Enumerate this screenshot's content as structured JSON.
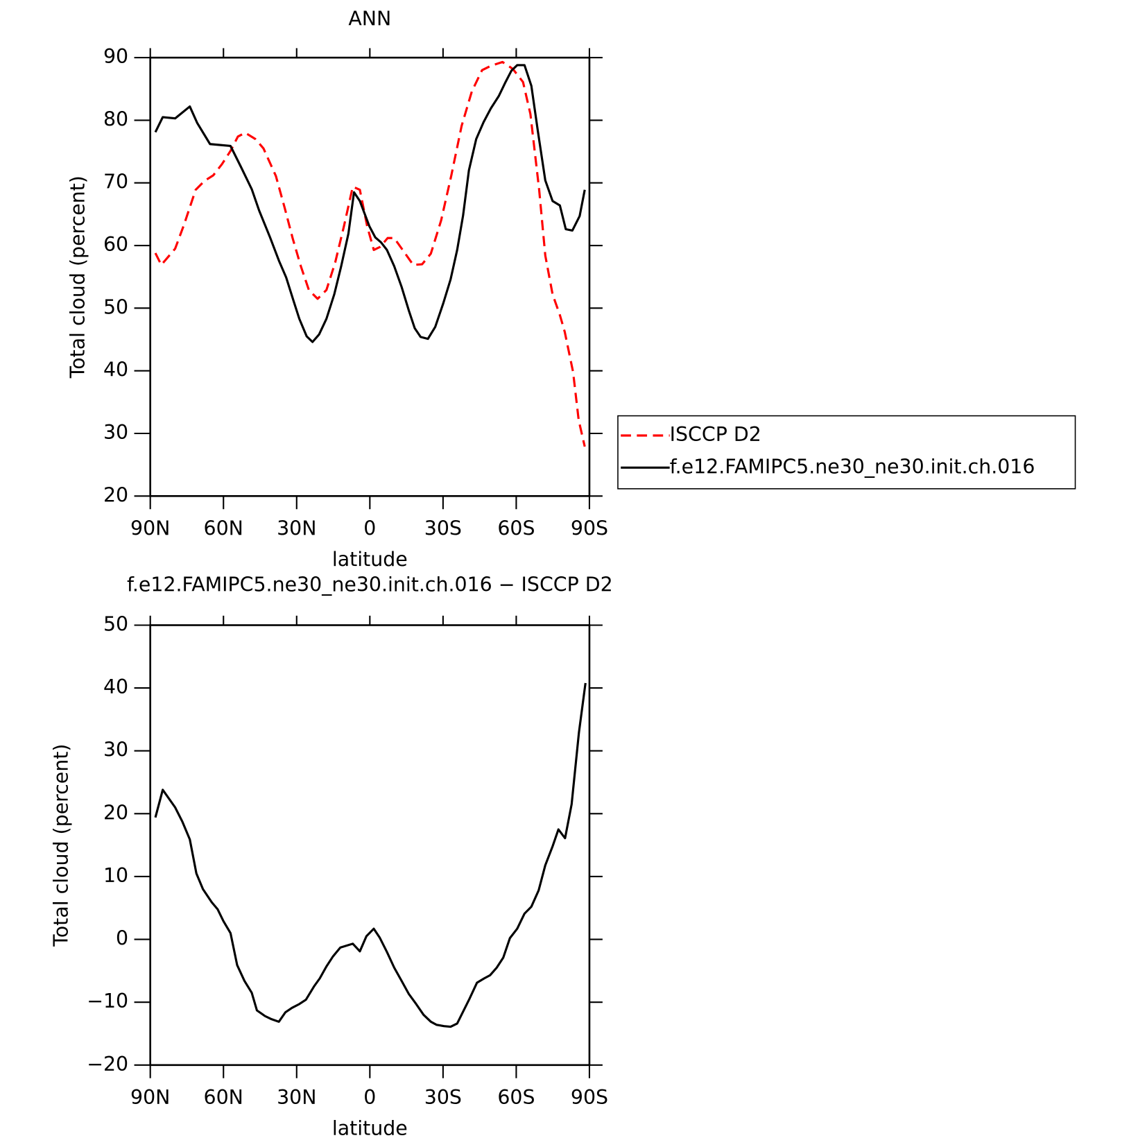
{
  "chart_data": [
    {
      "type": "line",
      "title": "ANN",
      "xlabel": "latitude",
      "ylabel": "Total cloud (percent)",
      "xlim": [
        90,
        -90
      ],
      "xticks": [
        {
          "value": 90,
          "label": "90N"
        },
        {
          "value": 60,
          "label": "60N"
        },
        {
          "value": 30,
          "label": "30N"
        },
        0,
        {
          "value": -30,
          "label": "30S"
        },
        {
          "value": -60,
          "label": "60S"
        },
        {
          "value": -90,
          "label": "90S"
        }
      ],
      "ylim": [
        20,
        90
      ],
      "yticks": [
        20,
        30,
        40,
        50,
        60,
        70,
        80,
        90
      ],
      "legend": "right",
      "series": [
        {
          "name": "ISCCP D2",
          "color": "#ff0000",
          "linestyle": "dashed",
          "x": [
            87.9,
            85.5,
            79.8,
            76.2,
            71.4,
            67.8,
            64.2,
            60.6,
            57.1,
            54.1,
            51.1,
            46.9,
            43.6,
            38.5,
            34.9,
            31.6,
            28.3,
            25.0,
            21.4,
            17.8,
            14.2,
            10.6,
            7.0,
            4.1,
            1.1,
            -1.6,
            -4.3,
            -7.3,
            -10.0,
            -13.6,
            -17.8,
            -21.4,
            -25.0,
            -29.2,
            -33.4,
            -37.6,
            -41.8,
            -46.0,
            -49.6,
            -54.4,
            -58.6,
            -62.8,
            -65.8,
            -69.4,
            -71.9,
            -74.9,
            -77.9,
            -79.9,
            -83.3,
            -85.6,
            -88.1
          ],
          "values": [
            58.8,
            56.9,
            59.5,
            63.3,
            68.9,
            70.3,
            71.2,
            73.0,
            75.1,
            77.4,
            78.0,
            77.0,
            75.5,
            71.1,
            66.0,
            61.1,
            56.7,
            52.9,
            51.5,
            52.9,
            57.3,
            63.1,
            69.4,
            68.9,
            63.1,
            59.3,
            59.8,
            61.2,
            61.2,
            59.2,
            56.9,
            57.0,
            58.7,
            64.0,
            71.2,
            79.1,
            84.6,
            88.0,
            88.7,
            89.3,
            88.2,
            86.1,
            81.0,
            68.9,
            58.4,
            52.2,
            48.9,
            46.2,
            39.8,
            32.1,
            27.9
          ]
        },
        {
          "name": "f.e12.FAMIPC5.ne30_ne30.init.ch.016",
          "color": "#000000",
          "linestyle": "solid",
          "x": [
            87.9,
            84.9,
            79.8,
            73.8,
            70.8,
            65.5,
            57.1,
            52.9,
            48.4,
            45.4,
            40.9,
            37.3,
            34.3,
            31.3,
            28.9,
            25.9,
            23.5,
            20.8,
            17.8,
            14.6,
            11.8,
            8.8,
            6.5,
            4.1,
            0.2,
            -2.2,
            -4.6,
            -7.0,
            -10.0,
            -13.0,
            -16.0,
            -18.4,
            -20.8,
            -23.8,
            -26.8,
            -30.1,
            -33.1,
            -35.8,
            -38.2,
            -40.6,
            -43.6,
            -46.6,
            -49.6,
            -52.9,
            -55.6,
            -58.0,
            -60.4,
            -63.4,
            -66.2,
            -68.9,
            -71.9,
            -74.9,
            -77.9,
            -80.3,
            -83.0,
            -86.0,
            -88.1
          ],
          "values": [
            78.1,
            80.5,
            80.3,
            82.2,
            79.6,
            76.2,
            75.9,
            72.6,
            69.0,
            65.6,
            61.3,
            57.6,
            54.9,
            51.2,
            48.3,
            45.5,
            44.6,
            45.8,
            48.3,
            52.2,
            56.6,
            61.9,
            68.5,
            67.1,
            63.1,
            61.3,
            60.5,
            59.3,
            56.7,
            53.4,
            49.6,
            46.8,
            45.4,
            45.1,
            47.0,
            50.8,
            54.6,
            59.3,
            64.8,
            72.0,
            77.0,
            79.7,
            81.9,
            83.9,
            86.1,
            87.9,
            88.8,
            88.8,
            85.5,
            78.2,
            70.4,
            67.1,
            66.4,
            62.6,
            62.4,
            64.7,
            68.9
          ]
        }
      ]
    },
    {
      "type": "line",
      "title": "f.e12.FAMIPC5.ne30_ne30.init.ch.016 − ISCCP D2",
      "xlabel": "latitude",
      "ylabel": "Total cloud (percent)",
      "xlim": [
        90,
        -90
      ],
      "xticks": [
        {
          "value": 90,
          "label": "90N"
        },
        {
          "value": 60,
          "label": "60N"
        },
        {
          "value": 30,
          "label": "30N"
        },
        0,
        {
          "value": -30,
          "label": "30S"
        },
        {
          "value": -60,
          "label": "60S"
        },
        {
          "value": -90,
          "label": "90S"
        }
      ],
      "ylim": [
        -20,
        50
      ],
      "yticks": [
        {
          "value": -20,
          "label": "−20"
        },
        {
          "value": -10,
          "label": "−10"
        },
        0,
        10,
        20,
        30,
        40,
        50
      ],
      "series": [
        {
          "color": "#000000",
          "linestyle": "solid",
          "x": [
            87.9,
            84.9,
            79.8,
            76.8,
            73.8,
            71.1,
            68.4,
            64.8,
            62.4,
            60.0,
            57.1,
            54.4,
            51.4,
            48.4,
            46.3,
            43.0,
            40.3,
            37.3,
            34.6,
            31.9,
            28.9,
            26.2,
            22.9,
            20.5,
            17.8,
            15.1,
            12.1,
            7.0,
            4.1,
            1.4,
            -1.6,
            -4.0,
            -7.0,
            -10.0,
            -13.0,
            -16.0,
            -19.0,
            -22.0,
            -25.0,
            -27.4,
            -30.4,
            -33.1,
            -35.8,
            -38.2,
            -40.9,
            -43.9,
            -46.9,
            -49.3,
            -52.0,
            -54.7,
            -57.4,
            -60.4,
            -63.4,
            -66.2,
            -69.2,
            -71.9,
            -74.9,
            -77.3,
            -80.0,
            -82.7,
            -85.7,
            -88.4
          ],
          "values": [
            19.4,
            23.8,
            21.0,
            18.7,
            15.9,
            10.5,
            8.0,
            5.9,
            4.8,
            2.9,
            1.0,
            -4.1,
            -6.6,
            -8.5,
            -11.3,
            -12.2,
            -12.7,
            -13.1,
            -11.6,
            -10.9,
            -10.3,
            -9.6,
            -7.5,
            -6.2,
            -4.3,
            -2.7,
            -1.3,
            -0.7,
            -1.9,
            0.5,
            1.7,
            0.3,
            -2.0,
            -4.5,
            -6.6,
            -8.7,
            -10.3,
            -12.0,
            -13.1,
            -13.6,
            -13.8,
            -13.9,
            -13.4,
            -11.5,
            -9.4,
            -6.9,
            -6.2,
            -5.7,
            -4.5,
            -2.9,
            0.2,
            1.7,
            4.1,
            5.2,
            7.8,
            11.8,
            14.8,
            17.5,
            16.1,
            21.5,
            32.9,
            40.8
          ]
        }
      ]
    }
  ]
}
